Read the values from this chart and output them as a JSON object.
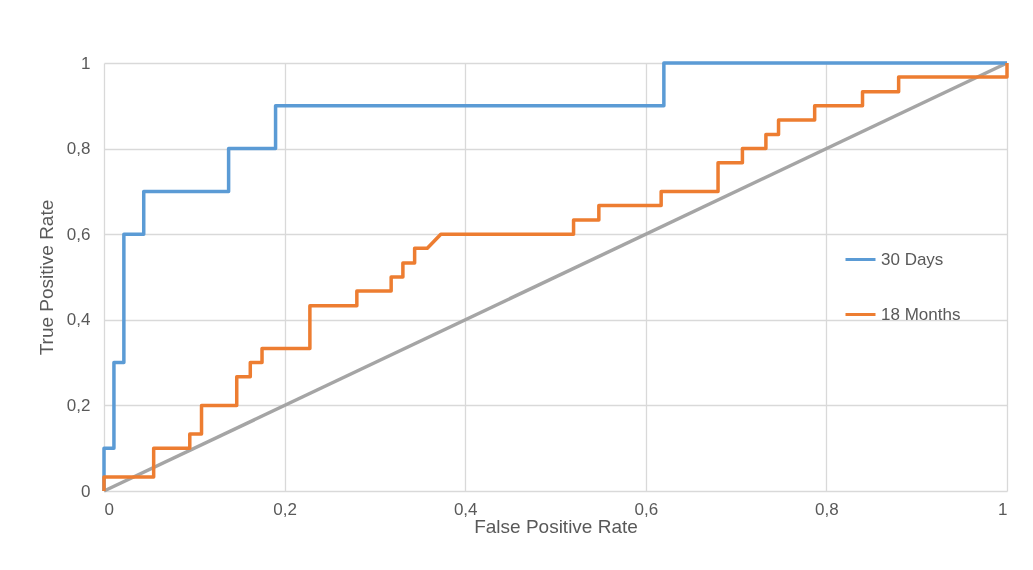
{
  "chart_data": {
    "type": "line",
    "xlabel": "False Positive Rate",
    "ylabel": "True Positive Rate",
    "xlim": [
      0,
      1
    ],
    "ylim": [
      0,
      1
    ],
    "xticks": [
      0,
      {
        "value": 0.2,
        "label": "0,2"
      },
      {
        "value": 0.4,
        "label": "0,4"
      },
      {
        "value": 0.6,
        "label": "0,6"
      },
      {
        "value": 0.8,
        "label": "0,8"
      },
      1
    ],
    "yticks": [
      0,
      {
        "value": 0.2,
        "label": "0,2"
      },
      {
        "value": 0.4,
        "label": "0,4"
      },
      {
        "value": 0.6,
        "label": "0,6"
      },
      {
        "value": 0.8,
        "label": "0,8"
      },
      1
    ],
    "grid": true,
    "legend": "right",
    "marker": "none",
    "line_style": "solid",
    "series": [
      {
        "name": "30 Days",
        "color": "#5b9bd5",
        "x": [
          0,
          0,
          0.011,
          0.011,
          0.022,
          0.022,
          0.044,
          0.044,
          0.138,
          0.138,
          0.19,
          0.19,
          0.62,
          0.62,
          1
        ],
        "values": [
          0,
          0.1,
          0.1,
          0.3,
          0.3,
          0.6,
          0.6,
          0.7,
          0.7,
          0.8,
          0.8,
          0.9,
          0.9,
          1,
          1
        ]
      },
      {
        "name": "18 Months",
        "color": "#ed7d31",
        "x": [
          0,
          0,
          0.055,
          0.055,
          0.095,
          0.095,
          0.108,
          0.108,
          0.147,
          0.147,
          0.162,
          0.162,
          0.175,
          0.175,
          0.228,
          0.228,
          0.28,
          0.28,
          0.318,
          0.318,
          0.331,
          0.331,
          0.344,
          0.344,
          0.358,
          0.373,
          0.52,
          0.52,
          0.548,
          0.548,
          0.617,
          0.617,
          0.68,
          0.68,
          0.707,
          0.707,
          0.733,
          0.733,
          0.747,
          0.747,
          0.787,
          0.787,
          0.84,
          0.84,
          0.88,
          0.88,
          1,
          1
        ],
        "values": [
          0,
          0.033,
          0.033,
          0.1,
          0.1,
          0.133,
          0.133,
          0.2,
          0.2,
          0.267,
          0.267,
          0.3,
          0.3,
          0.333,
          0.333,
          0.433,
          0.433,
          0.467,
          0.467,
          0.5,
          0.5,
          0.533,
          0.533,
          0.567,
          0.567,
          0.6,
          0.6,
          0.633,
          0.633,
          0.667,
          0.667,
          0.7,
          0.7,
          0.767,
          0.767,
          0.8,
          0.8,
          0.833,
          0.833,
          0.867,
          0.867,
          0.9,
          0.9,
          0.933,
          0.933,
          0.967,
          0.967,
          1
        ]
      },
      {
        "color": "#a5a5a5",
        "x": [
          0,
          1
        ],
        "values": [
          0,
          1
        ]
      }
    ]
  }
}
